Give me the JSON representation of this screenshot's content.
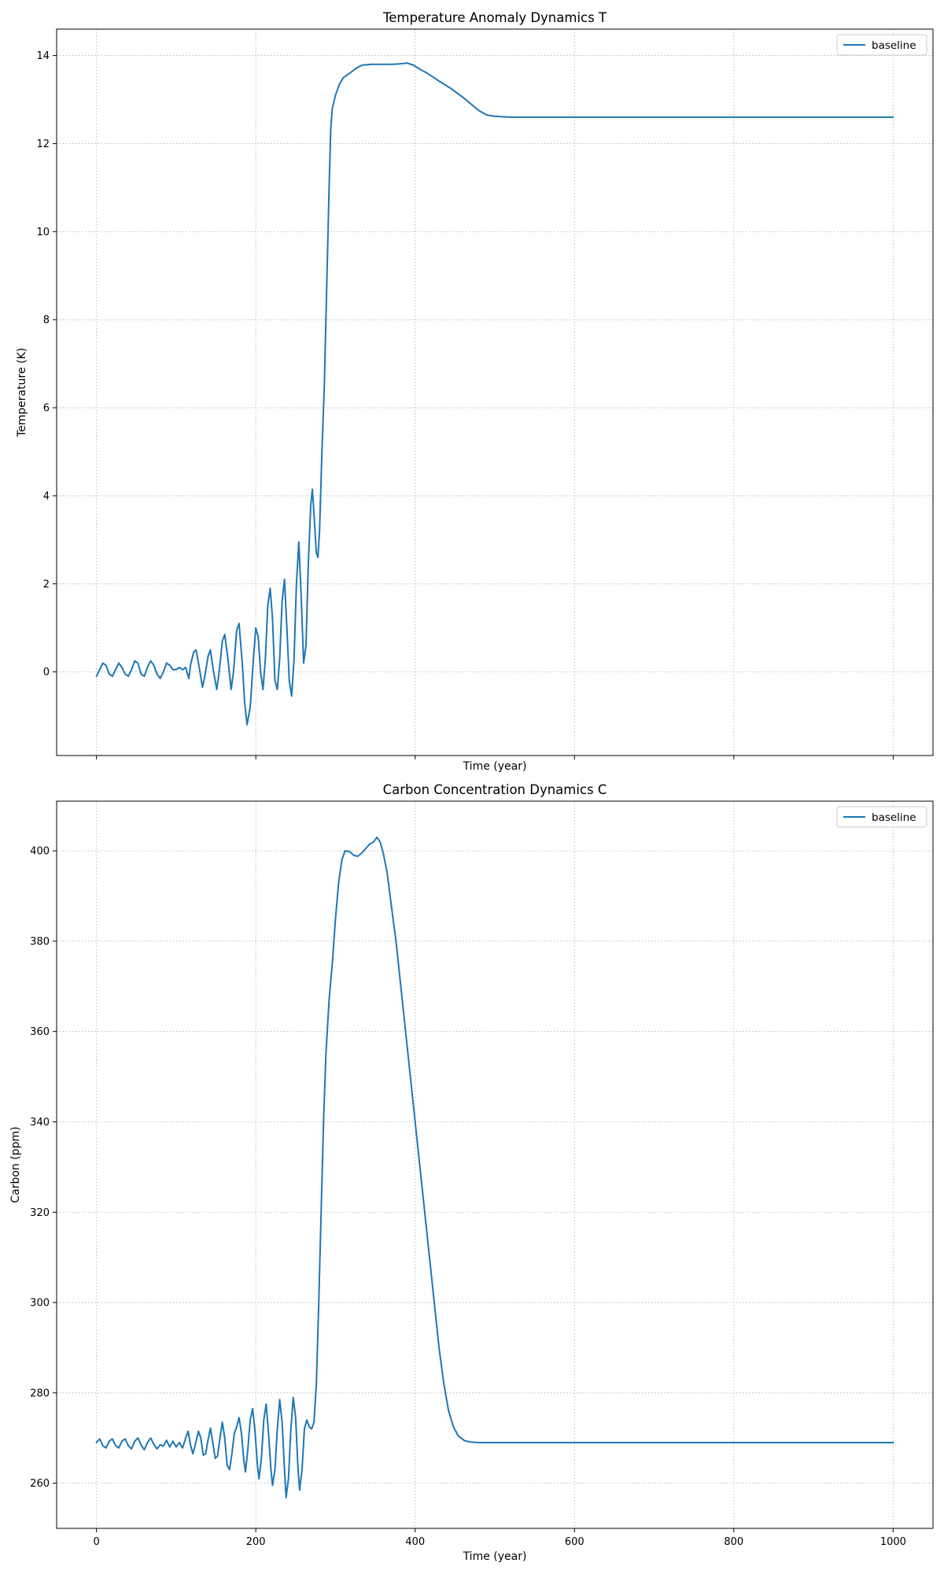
{
  "chart_data": [
    {
      "type": "line",
      "title": "Temperature Anomaly Dynamics T",
      "xlabel": "Time (year)",
      "ylabel": "Temperature (K)",
      "xlim": [
        -50,
        1050
      ],
      "ylim": [
        -1.9,
        14.6
      ],
      "xticks": [
        0,
        200,
        400,
        600,
        800,
        1000
      ],
      "xtick_labels_visible": false,
      "yticks": [
        0,
        2,
        4,
        6,
        8,
        10,
        12,
        14
      ],
      "grid": true,
      "grid_style": "dotted",
      "legend_position": "top-right",
      "series": [
        {
          "name": "baseline",
          "color": "#1f77b4",
          "points": [
            [
              0,
              -0.1
            ],
            [
              4,
              0.05
            ],
            [
              8,
              0.2
            ],
            [
              12,
              0.15
            ],
            [
              16,
              -0.05
            ],
            [
              20,
              -0.1
            ],
            [
              24,
              0.05
            ],
            [
              28,
              0.2
            ],
            [
              32,
              0.1
            ],
            [
              36,
              -0.05
            ],
            [
              40,
              -0.1
            ],
            [
              44,
              0.05
            ],
            [
              48,
              0.25
            ],
            [
              52,
              0.2
            ],
            [
              56,
              -0.05
            ],
            [
              60,
              -0.1
            ],
            [
              64,
              0.1
            ],
            [
              68,
              0.25
            ],
            [
              72,
              0.15
            ],
            [
              76,
              -0.05
            ],
            [
              80,
              -0.15
            ],
            [
              84,
              0.0
            ],
            [
              88,
              0.2
            ],
            [
              92,
              0.15
            ],
            [
              96,
              0.05
            ],
            [
              100,
              0.05
            ],
            [
              104,
              0.1
            ],
            [
              108,
              0.05
            ],
            [
              112,
              0.1
            ],
            [
              116,
              -0.15
            ],
            [
              118,
              0.15
            ],
            [
              122,
              0.45
            ],
            [
              125,
              0.5
            ],
            [
              129,
              0.1
            ],
            [
              133,
              -0.35
            ],
            [
              136,
              -0.1
            ],
            [
              140,
              0.35
            ],
            [
              143,
              0.5
            ],
            [
              147,
              0.0
            ],
            [
              151,
              -0.4
            ],
            [
              154,
              0.0
            ],
            [
              158,
              0.7
            ],
            [
              161,
              0.85
            ],
            [
              165,
              0.3
            ],
            [
              169,
              -0.4
            ],
            [
              172,
              0.0
            ],
            [
              176,
              0.95
            ],
            [
              179,
              1.1
            ],
            [
              183,
              0.2
            ],
            [
              186,
              -0.7
            ],
            [
              189,
              -1.2
            ],
            [
              193,
              -0.8
            ],
            [
              197,
              0.3
            ],
            [
              200,
              1.0
            ],
            [
              203,
              0.8
            ],
            [
              206,
              0.0
            ],
            [
              209,
              -0.4
            ],
            [
              212,
              0.3
            ],
            [
              215,
              1.5
            ],
            [
              218,
              1.9
            ],
            [
              221,
              1.2
            ],
            [
              224,
              -0.2
            ],
            [
              227,
              -0.4
            ],
            [
              230,
              0.3
            ],
            [
              233,
              1.6
            ],
            [
              236,
              2.1
            ],
            [
              239,
              1.0
            ],
            [
              242,
              -0.2
            ],
            [
              245,
              -0.55
            ],
            [
              248,
              0.3
            ],
            [
              251,
              2.0
            ],
            [
              254,
              2.95
            ],
            [
              257,
              1.7
            ],
            [
              260,
              0.2
            ],
            [
              263,
              0.6
            ],
            [
              266,
              2.5
            ],
            [
              269,
              3.8
            ],
            [
              271,
              4.15
            ],
            [
              273,
              3.6
            ],
            [
              276,
              2.7
            ],
            [
              278,
              2.6
            ],
            [
              280,
              3.2
            ],
            [
              283,
              5.0
            ],
            [
              286,
              6.5
            ],
            [
              288,
              8.0
            ],
            [
              290,
              9.5
            ],
            [
              292,
              11.0
            ],
            [
              294,
              12.3
            ],
            [
              296,
              12.8
            ],
            [
              300,
              13.1
            ],
            [
              305,
              13.35
            ],
            [
              310,
              13.5
            ],
            [
              318,
              13.6
            ],
            [
              325,
              13.7
            ],
            [
              333,
              13.78
            ],
            [
              345,
              13.8
            ],
            [
              360,
              13.8
            ],
            [
              370,
              13.8
            ],
            [
              380,
              13.81
            ],
            [
              390,
              13.83
            ],
            [
              398,
              13.78
            ],
            [
              405,
              13.7
            ],
            [
              415,
              13.6
            ],
            [
              430,
              13.42
            ],
            [
              445,
              13.25
            ],
            [
              460,
              13.05
            ],
            [
              470,
              12.9
            ],
            [
              480,
              12.75
            ],
            [
              490,
              12.65
            ],
            [
              500,
              12.62
            ],
            [
              520,
              12.6
            ],
            [
              600,
              12.6
            ],
            [
              800,
              12.6
            ],
            [
              1000,
              12.6
            ]
          ]
        }
      ]
    },
    {
      "type": "line",
      "title": "Carbon Concentration Dynamics C",
      "xlabel": "Time (year)",
      "ylabel": "Carbon (ppm)",
      "xlim": [
        -50,
        1050
      ],
      "ylim": [
        250,
        411
      ],
      "xticks": [
        0,
        200,
        400,
        600,
        800,
        1000
      ],
      "xtick_labels": [
        "0",
        "200",
        "400",
        "600",
        "800",
        "1000"
      ],
      "yticks": [
        260,
        280,
        300,
        320,
        340,
        360,
        380,
        400
      ],
      "grid": true,
      "grid_style": "dotted",
      "legend_position": "top-right",
      "series": [
        {
          "name": "baseline",
          "color": "#1f77b4",
          "points": [
            [
              0,
              269
            ],
            [
              4,
              269.8
            ],
            [
              8,
              268.3
            ],
            [
              12,
              267.8
            ],
            [
              16,
              269.3
            ],
            [
              20,
              269.8
            ],
            [
              24,
              268.3
            ],
            [
              28,
              267.8
            ],
            [
              32,
              269.3
            ],
            [
              36,
              269.8
            ],
            [
              40,
              268.3
            ],
            [
              44,
              267.6
            ],
            [
              48,
              269.3
            ],
            [
              52,
              270.0
            ],
            [
              56,
              268.5
            ],
            [
              60,
              267.4
            ],
            [
              64,
              269.0
            ],
            [
              68,
              270.0
            ],
            [
              72,
              268.6
            ],
            [
              76,
              267.6
            ],
            [
              80,
              268.5
            ],
            [
              84,
              268.2
            ],
            [
              88,
              269.5
            ],
            [
              92,
              268.0
            ],
            [
              96,
              269.3
            ],
            [
              100,
              268.0
            ],
            [
              104,
              269.0
            ],
            [
              108,
              267.8
            ],
            [
              112,
              270.0
            ],
            [
              115,
              271.5
            ],
            [
              118,
              268.5
            ],
            [
              121,
              266.5
            ],
            [
              124,
              268.5
            ],
            [
              128,
              271.5
            ],
            [
              131,
              270.0
            ],
            [
              134,
              266.2
            ],
            [
              137,
              266.5
            ],
            [
              140,
              269.5
            ],
            [
              143,
              272.2
            ],
            [
              146,
              269.0
            ],
            [
              149,
              265.5
            ],
            [
              152,
              266.0
            ],
            [
              155,
              270.0
            ],
            [
              158,
              273.5
            ],
            [
              161,
              270.0
            ],
            [
              164,
              264.0
            ],
            [
              167,
              263.0
            ],
            [
              170,
              266.5
            ],
            [
              173,
              271.0
            ],
            [
              176,
              272.5
            ],
            [
              179,
              274.5
            ],
            [
              182,
              271.0
            ],
            [
              185,
              265.0
            ],
            [
              187,
              262.5
            ],
            [
              190,
              267.5
            ],
            [
              193,
              274.0
            ],
            [
              196,
              276.5
            ],
            [
              199,
              271.5
            ],
            [
              202,
              264.0
            ],
            [
              204,
              261.0
            ],
            [
              207,
              265.5
            ],
            [
              210,
              274.0
            ],
            [
              213,
              277.5
            ],
            [
              216,
              271.0
            ],
            [
              219,
              263.0
            ],
            [
              221,
              259.5
            ],
            [
              224,
              263.0
            ],
            [
              227,
              272.0
            ],
            [
              230,
              278.5
            ],
            [
              233,
              273.5
            ],
            [
              236,
              263.0
            ],
            [
              238,
              256.8
            ],
            [
              241,
              261.0
            ],
            [
              244,
              272.0
            ],
            [
              247,
              279.0
            ],
            [
              250,
              274.5
            ],
            [
              253,
              263.0
            ],
            [
              255,
              258.5
            ],
            [
              258,
              263.0
            ],
            [
              261,
              272.0
            ],
            [
              264,
              274.0
            ],
            [
              267,
              272.5
            ],
            [
              270,
              272.0
            ],
            [
              273,
              273.5
            ],
            [
              276,
              282.0
            ],
            [
              279,
              300.0
            ],
            [
              282,
              320.0
            ],
            [
              285,
              340.0
            ],
            [
              288,
              355.0
            ],
            [
              292,
              367.0
            ],
            [
              296,
              375.0
            ],
            [
              300,
              385.0
            ],
            [
              304,
              393.0
            ],
            [
              308,
              398.0
            ],
            [
              312,
              400.0
            ],
            [
              318,
              399.8
            ],
            [
              323,
              399.0
            ],
            [
              328,
              398.8
            ],
            [
              333,
              399.5
            ],
            [
              338,
              400.5
            ],
            [
              343,
              401.5
            ],
            [
              348,
              402.0
            ],
            [
              352,
              403.0
            ],
            [
              356,
              402.0
            ],
            [
              360,
              399.5
            ],
            [
              365,
              395.0
            ],
            [
              370,
              388.0
            ],
            [
              376,
              380.0
            ],
            [
              382,
              370.0
            ],
            [
              388,
              360.0
            ],
            [
              394,
              350.0
            ],
            [
              400,
              340.0
            ],
            [
              406,
              330.0
            ],
            [
              412,
              320.0
            ],
            [
              418,
              310.0
            ],
            [
              424,
              300.0
            ],
            [
              430,
              290.0
            ],
            [
              436,
              282.0
            ],
            [
              442,
              276.0
            ],
            [
              448,
              272.5
            ],
            [
              454,
              270.5
            ],
            [
              462,
              269.4
            ],
            [
              470,
              269.1
            ],
            [
              480,
              269.0
            ],
            [
              500,
              269.0
            ],
            [
              600,
              269.0
            ],
            [
              800,
              269.0
            ],
            [
              1000,
              269.0
            ]
          ]
        }
      ]
    }
  ]
}
